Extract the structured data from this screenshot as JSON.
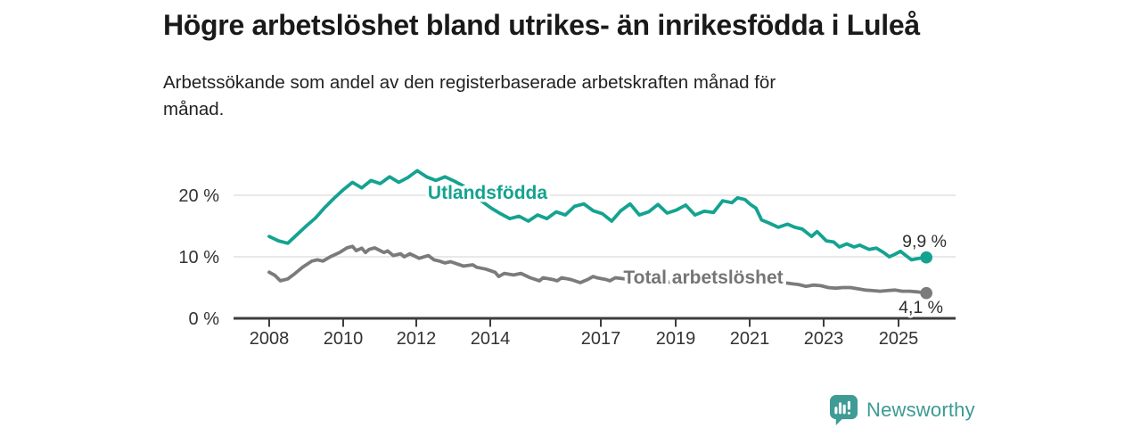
{
  "header": {
    "title": "Högre arbetslöshet bland utrikes- än inrikesfödda i Luleå",
    "subtitle": "Arbetssökande som andel av den registerbaserade arbetskraften månad för månad."
  },
  "branding": {
    "logo_text": "Newsworthy",
    "logo_icon": "bar-chart-badge-icon",
    "brand_color": "#3B9A94"
  },
  "colors": {
    "foreign_born_line": "#14A390",
    "total_line": "#7B7B7B",
    "gridline": "#DCDCDC",
    "axis": "#3D3D3D",
    "tick_text": "#333333"
  },
  "chart_data": {
    "type": "line",
    "unit": "%",
    "grid": "horizontal",
    "legend_position": "inline-labels",
    "xlim": [
      2008,
      2026.6
    ],
    "ylim": [
      0,
      26
    ],
    "y_ticks": [
      0,
      10,
      20
    ],
    "y_tick_labels": [
      "0 %",
      "10 %",
      "20 %"
    ],
    "x_ticks": [
      2008,
      2010,
      2012,
      2014,
      2017,
      2019,
      2021,
      2023,
      2025
    ],
    "x_tick_labels": [
      "2008",
      "2010",
      "2012",
      "2014",
      "2017",
      "2019",
      "2021",
      "2023",
      "2025"
    ],
    "series": [
      {
        "name": "Utlandsfödda",
        "color": "#14A390",
        "end_value": 9.9,
        "end_label": "9,9 %",
        "points": [
          [
            2008.0,
            13.3
          ],
          [
            2008.25,
            12.6
          ],
          [
            2008.5,
            12.2
          ],
          [
            2008.75,
            13.6
          ],
          [
            2009.0,
            15.0
          ],
          [
            2009.25,
            16.3
          ],
          [
            2009.5,
            18.0
          ],
          [
            2009.75,
            19.5
          ],
          [
            2010.0,
            20.9
          ],
          [
            2010.25,
            22.1
          ],
          [
            2010.5,
            21.2
          ],
          [
            2010.75,
            22.4
          ],
          [
            2011.0,
            21.9
          ],
          [
            2011.25,
            23.0
          ],
          [
            2011.5,
            22.1
          ],
          [
            2011.75,
            22.9
          ],
          [
            2012.0,
            24.0
          ],
          [
            2012.25,
            23.0
          ],
          [
            2012.5,
            22.4
          ],
          [
            2012.75,
            23.0
          ],
          [
            2013.0,
            22.3
          ],
          [
            2013.25,
            21.5
          ],
          [
            2013.5,
            20.3
          ],
          [
            2013.75,
            19.0
          ],
          [
            2014.0,
            17.9
          ],
          [
            2014.25,
            17.0
          ],
          [
            2014.5,
            16.2
          ],
          [
            2014.75,
            16.6
          ],
          [
            2015.0,
            15.8
          ],
          [
            2015.25,
            16.8
          ],
          [
            2015.5,
            16.2
          ],
          [
            2015.75,
            17.3
          ],
          [
            2016.0,
            16.8
          ],
          [
            2016.25,
            18.2
          ],
          [
            2016.5,
            18.6
          ],
          [
            2016.75,
            17.5
          ],
          [
            2017.0,
            17.0
          ],
          [
            2017.25,
            15.8
          ],
          [
            2017.5,
            17.5
          ],
          [
            2017.75,
            18.6
          ],
          [
            2018.0,
            16.8
          ],
          [
            2018.25,
            17.3
          ],
          [
            2018.5,
            18.5
          ],
          [
            2018.75,
            17.1
          ],
          [
            2019.0,
            17.6
          ],
          [
            2019.25,
            18.4
          ],
          [
            2019.5,
            16.8
          ],
          [
            2019.75,
            17.4
          ],
          [
            2020.0,
            17.2
          ],
          [
            2020.25,
            19.1
          ],
          [
            2020.5,
            18.8
          ],
          [
            2020.65,
            19.6
          ],
          [
            2020.85,
            19.3
          ],
          [
            2021.0,
            18.5
          ],
          [
            2021.15,
            17.9
          ],
          [
            2021.3,
            16.0
          ],
          [
            2021.5,
            15.5
          ],
          [
            2021.75,
            14.8
          ],
          [
            2022.0,
            15.3
          ],
          [
            2022.2,
            14.8
          ],
          [
            2022.4,
            14.5
          ],
          [
            2022.65,
            13.3
          ],
          [
            2022.8,
            14.1
          ],
          [
            2023.05,
            12.6
          ],
          [
            2023.25,
            12.4
          ],
          [
            2023.4,
            11.6
          ],
          [
            2023.6,
            12.1
          ],
          [
            2023.8,
            11.6
          ],
          [
            2023.95,
            11.9
          ],
          [
            2024.2,
            11.2
          ],
          [
            2024.4,
            11.4
          ],
          [
            2024.6,
            10.7
          ],
          [
            2024.75,
            10.0
          ],
          [
            2024.9,
            10.4
          ],
          [
            2025.05,
            10.9
          ],
          [
            2025.2,
            10.2
          ],
          [
            2025.35,
            9.5
          ],
          [
            2025.5,
            9.7
          ],
          [
            2025.75,
            9.9
          ]
        ]
      },
      {
        "name": "Total arbetslöshet",
        "color": "#7B7B7B",
        "end_value": 4.1,
        "end_label": "4,1 %",
        "points": [
          [
            2008.0,
            7.5
          ],
          [
            2008.15,
            7.0
          ],
          [
            2008.3,
            6.1
          ],
          [
            2008.5,
            6.4
          ],
          [
            2008.7,
            7.3
          ],
          [
            2008.9,
            8.3
          ],
          [
            2009.15,
            9.3
          ],
          [
            2009.3,
            9.5
          ],
          [
            2009.45,
            9.3
          ],
          [
            2009.65,
            10.0
          ],
          [
            2009.9,
            10.7
          ],
          [
            2010.1,
            11.45
          ],
          [
            2010.25,
            11.7
          ],
          [
            2010.35,
            11.0
          ],
          [
            2010.5,
            11.4
          ],
          [
            2010.6,
            10.7
          ],
          [
            2010.7,
            11.2
          ],
          [
            2010.85,
            11.45
          ],
          [
            2011.1,
            10.7
          ],
          [
            2011.2,
            10.95
          ],
          [
            2011.35,
            10.2
          ],
          [
            2011.55,
            10.5
          ],
          [
            2011.65,
            10.0
          ],
          [
            2011.8,
            10.5
          ],
          [
            2011.9,
            10.2
          ],
          [
            2012.05,
            9.75
          ],
          [
            2012.3,
            10.2
          ],
          [
            2012.45,
            9.5
          ],
          [
            2012.6,
            9.3
          ],
          [
            2012.75,
            9.0
          ],
          [
            2012.9,
            9.2
          ],
          [
            2013.1,
            8.8
          ],
          [
            2013.25,
            8.5
          ],
          [
            2013.5,
            8.7
          ],
          [
            2013.6,
            8.3
          ],
          [
            2013.85,
            8.0
          ],
          [
            2014.1,
            7.5
          ],
          [
            2014.2,
            6.8
          ],
          [
            2014.35,
            7.3
          ],
          [
            2014.6,
            7.05
          ],
          [
            2014.8,
            7.3
          ],
          [
            2015.05,
            6.6
          ],
          [
            2015.3,
            6.1
          ],
          [
            2015.4,
            6.6
          ],
          [
            2015.66,
            6.3
          ],
          [
            2015.78,
            6.1
          ],
          [
            2015.9,
            6.6
          ],
          [
            2016.15,
            6.3
          ],
          [
            2016.4,
            5.8
          ],
          [
            2016.6,
            6.3
          ],
          [
            2016.75,
            6.8
          ],
          [
            2016.85,
            6.6
          ],
          [
            2017.1,
            6.3
          ],
          [
            2017.2,
            6.1
          ],
          [
            2017.35,
            6.6
          ],
          [
            2017.6,
            6.4
          ],
          [
            2018.0,
            6.2
          ],
          [
            2018.5,
            6.0
          ],
          [
            2019.0,
            5.8
          ],
          [
            2019.5,
            5.6
          ],
          [
            2020.0,
            6.0
          ],
          [
            2020.4,
            6.8
          ],
          [
            2020.7,
            7.2
          ],
          [
            2021.0,
            6.8
          ],
          [
            2021.3,
            6.4
          ],
          [
            2021.6,
            6.0
          ],
          [
            2021.9,
            5.8
          ],
          [
            2022.15,
            5.6
          ],
          [
            2022.3,
            5.5
          ],
          [
            2022.5,
            5.2
          ],
          [
            2022.7,
            5.4
          ],
          [
            2022.9,
            5.3
          ],
          [
            2023.1,
            5.0
          ],
          [
            2023.3,
            4.9
          ],
          [
            2023.5,
            5.0
          ],
          [
            2023.7,
            5.0
          ],
          [
            2023.9,
            4.8
          ],
          [
            2024.1,
            4.6
          ],
          [
            2024.3,
            4.5
          ],
          [
            2024.5,
            4.4
          ],
          [
            2024.7,
            4.5
          ],
          [
            2024.9,
            4.6
          ],
          [
            2025.1,
            4.4
          ],
          [
            2025.3,
            4.4
          ],
          [
            2025.5,
            4.3
          ],
          [
            2025.75,
            4.1
          ]
        ]
      }
    ]
  }
}
